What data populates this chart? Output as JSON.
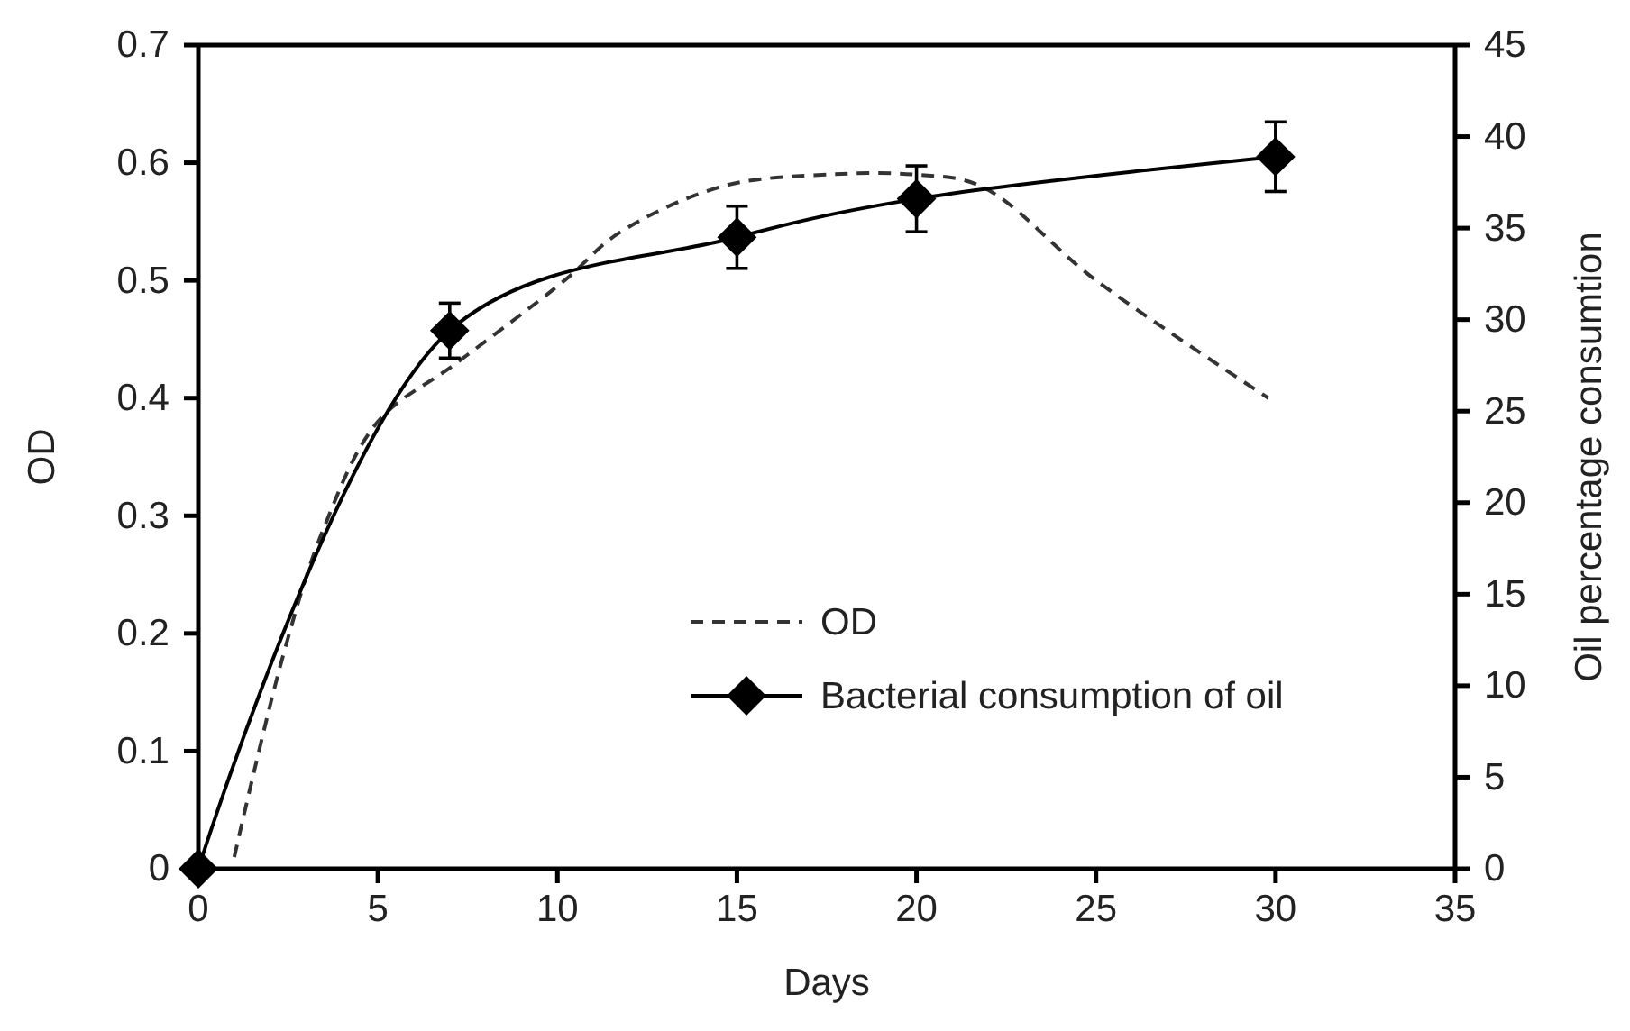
{
  "chart_data": {
    "type": "line",
    "xlabel": "Days",
    "ylabel": "OD",
    "y2label": "Oil percentage consumtion",
    "xlim": [
      0,
      35
    ],
    "xticks": [
      0,
      5,
      10,
      15,
      20,
      25,
      30,
      35
    ],
    "ylim": [
      0,
      0.7
    ],
    "yticks": [
      0,
      0.1,
      0.2,
      0.3,
      0.4,
      0.5,
      0.6,
      0.7
    ],
    "y2lim": [
      0,
      45
    ],
    "y2ticks": [
      0,
      5,
      10,
      15,
      20,
      25,
      30,
      35,
      40,
      45
    ],
    "legend": "bottom right",
    "grid": false,
    "series": [
      {
        "name": "OD",
        "color": "#333333",
        "line_style": "dashed",
        "marker": "none",
        "x": [
          1,
          2.35,
          3.5,
          5,
          7.2,
          10.2,
          11.7,
          14.6,
          17.6,
          19.9,
          21.8,
          25,
          29.8
        ],
        "values": [
          0.01,
          0.18,
          0.29,
          0.38,
          0.43,
          0.5,
          0.54,
          0.58,
          0.59,
          0.59,
          0.58,
          0.5,
          0.4
        ]
      },
      {
        "name": "Bacterial consumption of oil",
        "axis": "y2",
        "color": "#000000",
        "line_style": "solid",
        "marker": "diamond",
        "x": [
          0,
          7,
          15,
          20,
          30
        ],
        "values": [
          0,
          29.4,
          34.5,
          36.6,
          38.9
        ],
        "errors": [
          null,
          1.5,
          1.7,
          1.8,
          1.9
        ]
      }
    ]
  }
}
